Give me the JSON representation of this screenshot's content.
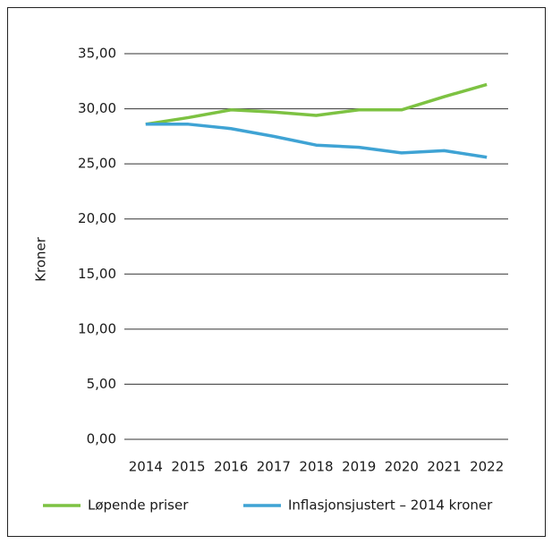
{
  "chart_data": {
    "type": "line",
    "y_label": "Kroner",
    "categories": [
      "2014",
      "2015",
      "2016",
      "2017",
      "2018",
      "2019",
      "2020",
      "2021",
      "2022"
    ],
    "series": [
      {
        "name": "Løpende priser",
        "color": "#7dc242",
        "values": [
          28.6,
          29.2,
          29.9,
          29.7,
          29.4,
          29.9,
          29.9,
          31.1,
          32.2
        ]
      },
      {
        "name": "Inflasjonsjustert – 2014 kroner",
        "color": "#3fa3d4",
        "values": [
          28.6,
          28.6,
          28.2,
          27.5,
          26.7,
          26.5,
          26.0,
          26.2,
          25.6
        ]
      }
    ],
    "ylim": [
      0,
      35
    ],
    "yticks": [
      {
        "value": 0,
        "label": "0,00"
      },
      {
        "value": 5,
        "label": "5,00"
      },
      {
        "value": 10,
        "label": "10,00"
      },
      {
        "value": 15,
        "label": "15,00"
      },
      {
        "value": 20,
        "label": "20,00"
      },
      {
        "value": 25,
        "label": "25,00"
      },
      {
        "value": 30,
        "label": "30,00"
      },
      {
        "value": 35,
        "label": "35,00"
      }
    ],
    "grid": true,
    "legend": "bottom"
  }
}
